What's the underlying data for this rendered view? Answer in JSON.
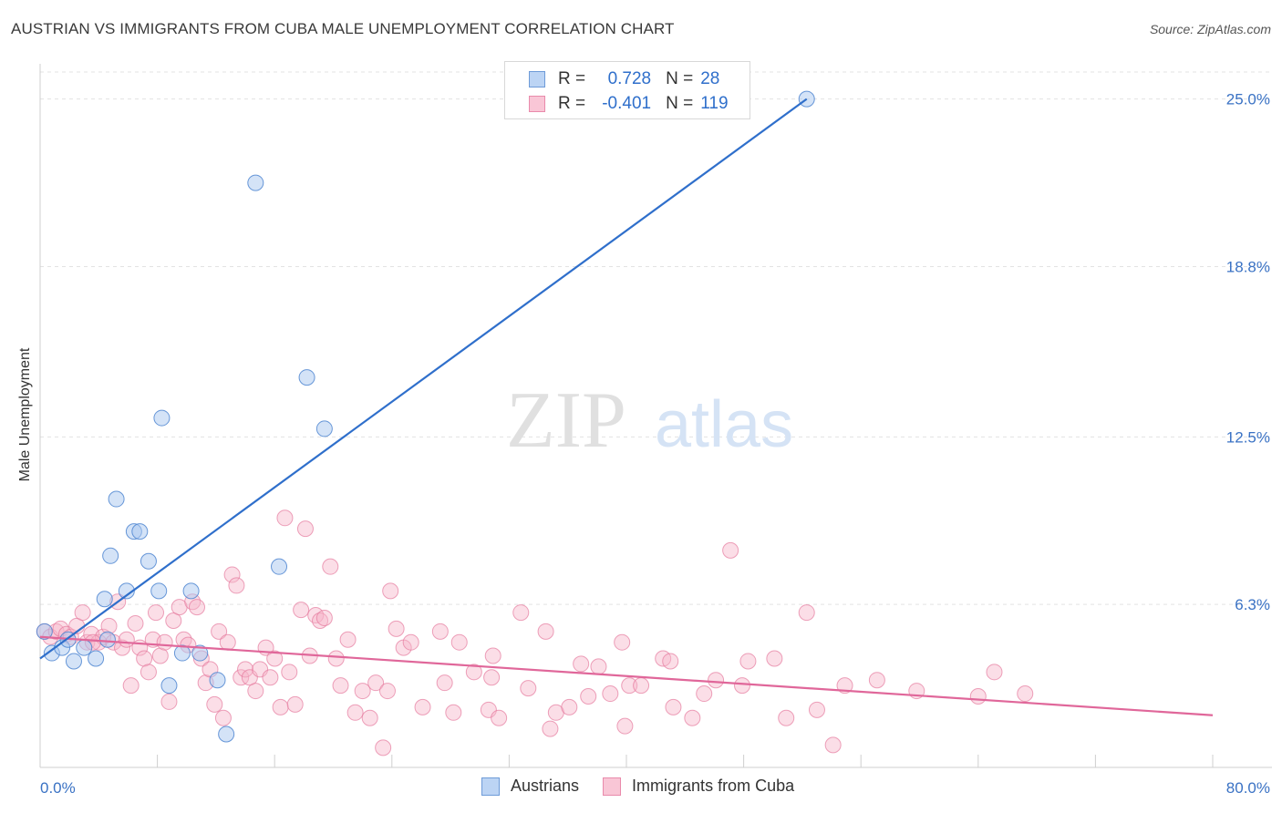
{
  "title": "AUSTRIAN VS IMMIGRANTS FROM CUBA MALE UNEMPLOYMENT CORRELATION CHART",
  "source": "Source: ZipAtlas.com",
  "watermark": {
    "part1": "ZIP",
    "part2": "atlas"
  },
  "legend": {
    "r_label": "R =",
    "n_label": "N =",
    "series1": {
      "r": "0.728",
      "n": "28"
    },
    "series2": {
      "r": "-0.401",
      "n": "119"
    }
  },
  "bottom_legend": {
    "series1": "Austrians",
    "series2": "Immigrants from Cuba"
  },
  "colors": {
    "blue_fill": "#aac8f0",
    "blue_stroke": "#4f86d1",
    "blue_line": "#2f6fcb",
    "pink_fill": "#f6b6ca",
    "pink_stroke": "#e57a9e",
    "pink_line": "#e0679a",
    "tick_text": "#3a72c4",
    "grid": "#e3e3e3"
  },
  "chart_data": {
    "type": "scatter",
    "title": "AUSTRIAN VS IMMIGRANTS FROM CUBA MALE UNEMPLOYMENT CORRELATION CHART",
    "xlabel": "",
    "ylabel": "Male Unemployment",
    "xlim": [
      0,
      80
    ],
    "ylim": [
      0,
      26
    ],
    "x_tick_labels": [
      "0.0%",
      "80.0%"
    ],
    "y_ticks": [
      6.3,
      12.5,
      18.8,
      25.0
    ],
    "y_tick_labels": [
      "6.3%",
      "12.5%",
      "18.8%",
      "25.0%"
    ],
    "grid": true,
    "series": [
      {
        "name": "Austrians",
        "points": [
          [
            0.3,
            5.3
          ],
          [
            0.8,
            4.5
          ],
          [
            1.5,
            4.7
          ],
          [
            1.9,
            5.0
          ],
          [
            2.3,
            4.2
          ],
          [
            3.0,
            4.7
          ],
          [
            3.8,
            4.3
          ],
          [
            4.4,
            6.5
          ],
          [
            4.8,
            8.1
          ],
          [
            5.2,
            10.2
          ],
          [
            5.9,
            6.8
          ],
          [
            6.4,
            9.0
          ],
          [
            6.8,
            9.0
          ],
          [
            7.4,
            7.9
          ],
          [
            8.1,
            6.8
          ],
          [
            8.3,
            13.2
          ],
          [
            8.8,
            3.3
          ],
          [
            9.7,
            4.5
          ],
          [
            10.3,
            6.8
          ],
          [
            10.9,
            4.5
          ],
          [
            12.1,
            3.5
          ],
          [
            12.7,
            1.5
          ],
          [
            14.7,
            21.9
          ],
          [
            16.3,
            7.7
          ],
          [
            18.2,
            14.7
          ],
          [
            19.4,
            12.8
          ],
          [
            52.3,
            25.0
          ],
          [
            4.6,
            5.0
          ]
        ],
        "trend": {
          "x": [
            0.0,
            52.3
          ],
          "y": [
            4.3,
            25.0
          ]
        }
      },
      {
        "name": "Immigrants from Cuba",
        "points": [
          [
            0.3,
            5.3
          ],
          [
            0.7,
            5.1
          ],
          [
            1.1,
            5.3
          ],
          [
            1.4,
            5.4
          ],
          [
            1.8,
            5.2
          ],
          [
            2.1,
            5.1
          ],
          [
            2.5,
            5.5
          ],
          [
            2.9,
            6.0
          ],
          [
            3.2,
            4.9
          ],
          [
            3.5,
            5.2
          ],
          [
            4.0,
            4.9
          ],
          [
            4.3,
            5.1
          ],
          [
            4.7,
            5.5
          ],
          [
            5.0,
            4.9
          ],
          [
            5.3,
            6.4
          ],
          [
            5.6,
            4.7
          ],
          [
            5.9,
            5.0
          ],
          [
            6.2,
            3.3
          ],
          [
            6.5,
            5.6
          ],
          [
            6.8,
            4.7
          ],
          [
            7.1,
            4.3
          ],
          [
            7.4,
            3.8
          ],
          [
            7.7,
            5.0
          ],
          [
            7.9,
            6.0
          ],
          [
            8.2,
            4.4
          ],
          [
            8.5,
            4.9
          ],
          [
            8.8,
            2.7
          ],
          [
            9.1,
            5.7
          ],
          [
            9.5,
            6.2
          ],
          [
            9.8,
            5.0
          ],
          [
            10.1,
            4.8
          ],
          [
            10.4,
            6.4
          ],
          [
            10.7,
            6.2
          ],
          [
            11.0,
            4.3
          ],
          [
            11.3,
            3.4
          ],
          [
            11.6,
            3.9
          ],
          [
            11.9,
            2.6
          ],
          [
            12.2,
            5.3
          ],
          [
            12.5,
            2.1
          ],
          [
            12.8,
            4.9
          ],
          [
            13.1,
            7.4
          ],
          [
            13.4,
            7.0
          ],
          [
            13.7,
            3.6
          ],
          [
            14.0,
            3.9
          ],
          [
            14.3,
            3.6
          ],
          [
            14.7,
            3.1
          ],
          [
            15.0,
            3.9
          ],
          [
            15.4,
            4.7
          ],
          [
            15.7,
            3.6
          ],
          [
            16.0,
            4.3
          ],
          [
            16.4,
            2.5
          ],
          [
            16.7,
            9.5
          ],
          [
            17.0,
            3.8
          ],
          [
            17.4,
            2.6
          ],
          [
            17.8,
            6.1
          ],
          [
            18.1,
            9.1
          ],
          [
            18.4,
            4.4
          ],
          [
            18.8,
            5.9
          ],
          [
            19.1,
            5.7
          ],
          [
            19.4,
            5.8
          ],
          [
            19.8,
            7.7
          ],
          [
            20.2,
            4.3
          ],
          [
            20.5,
            3.3
          ],
          [
            21.0,
            5.0
          ],
          [
            21.5,
            2.3
          ],
          [
            22.0,
            3.1
          ],
          [
            22.5,
            2.1
          ],
          [
            22.9,
            3.4
          ],
          [
            23.4,
            1.0
          ],
          [
            23.7,
            3.1
          ],
          [
            23.9,
            6.8
          ],
          [
            24.3,
            5.4
          ],
          [
            24.8,
            4.7
          ],
          [
            25.3,
            4.9
          ],
          [
            26.1,
            2.5
          ],
          [
            27.3,
            5.3
          ],
          [
            27.6,
            3.4
          ],
          [
            28.2,
            2.3
          ],
          [
            28.6,
            4.9
          ],
          [
            29.6,
            3.8
          ],
          [
            30.6,
            2.4
          ],
          [
            30.8,
            3.6
          ],
          [
            30.9,
            4.4
          ],
          [
            31.3,
            2.1
          ],
          [
            32.8,
            6.0
          ],
          [
            33.3,
            3.2
          ],
          [
            34.5,
            5.3
          ],
          [
            34.8,
            1.7
          ],
          [
            35.2,
            2.3
          ],
          [
            36.1,
            2.5
          ],
          [
            36.9,
            4.1
          ],
          [
            37.4,
            2.9
          ],
          [
            38.1,
            4.0
          ],
          [
            38.9,
            3.0
          ],
          [
            39.7,
            4.9
          ],
          [
            39.9,
            1.8
          ],
          [
            40.2,
            3.3
          ],
          [
            41.0,
            3.3
          ],
          [
            42.5,
            4.3
          ],
          [
            43.0,
            4.2
          ],
          [
            43.2,
            2.5
          ],
          [
            44.5,
            2.1
          ],
          [
            45.3,
            3.0
          ],
          [
            46.1,
            3.5
          ],
          [
            47.1,
            8.3
          ],
          [
            47.9,
            3.3
          ],
          [
            48.3,
            4.2
          ],
          [
            50.1,
            4.3
          ],
          [
            50.9,
            2.1
          ],
          [
            52.3,
            6.0
          ],
          [
            53.0,
            2.4
          ],
          [
            54.1,
            1.1
          ],
          [
            54.9,
            3.3
          ],
          [
            57.1,
            3.5
          ],
          [
            59.8,
            3.1
          ],
          [
            64.0,
            2.9
          ],
          [
            65.1,
            3.8
          ],
          [
            67.2,
            3.0
          ],
          [
            3.6,
            4.9
          ]
        ],
        "trend": {
          "x": [
            0.0,
            80.0
          ],
          "y": [
            5.1,
            2.2
          ]
        }
      }
    ]
  }
}
